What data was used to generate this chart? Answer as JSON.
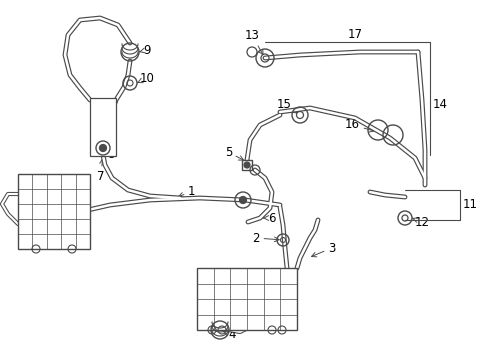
{
  "bg_color": "#ffffff",
  "line_color": "#4a4a4a",
  "text_color": "#000000",
  "label_fontsize": 8.5,
  "fig_width": 4.89,
  "fig_height": 3.6,
  "dpi": 100
}
